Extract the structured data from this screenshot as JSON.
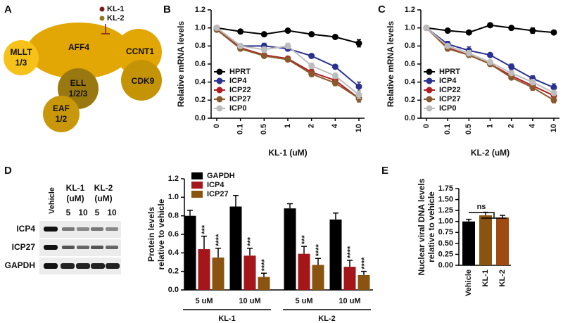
{
  "panel_labels": [
    "A",
    "B",
    "C",
    "D",
    "E"
  ],
  "diagram": {
    "nodes": [
      {
        "label": [
          "AFF4"
        ]
      },
      {
        "label": [
          "MLLT",
          "1/3"
        ]
      },
      {
        "label": [
          "CCNT1"
        ]
      },
      {
        "label": [
          "CDK9"
        ]
      },
      {
        "label": [
          "ELL",
          "1/2/3"
        ]
      },
      {
        "label": [
          "EAF",
          "1/2"
        ]
      }
    ],
    "legend": [
      "KL-1",
      "KL-2"
    ]
  },
  "blot": {
    "vehicle": "Vehicle",
    "treatments": [
      "KL-1",
      "KL-2"
    ],
    "unit": "(uM)",
    "doses": [
      "5",
      "10",
      "5",
      "10"
    ],
    "rows": [
      "ICP4",
      "ICP27",
      "GAPDH"
    ]
  },
  "chart_data": [
    {
      "type": "line",
      "x_label": "KL-1 (uM)",
      "y_label": "Relative mRNA levels",
      "legend": "lower left",
      "categories": [
        "0",
        "0.1",
        "0.5",
        "1",
        "2",
        "4",
        "10"
      ],
      "ylim": [
        0,
        1.2
      ],
      "yticks": [
        {
          "value": 0,
          "label": "0.0"
        },
        0.2,
        0.4,
        0.6,
        0.8,
        {
          "value": 1,
          "label": "1.0"
        },
        1.2
      ],
      "series": [
        {
          "name": "HPRT",
          "color": "#000000",
          "values": [
            1.0,
            0.96,
            0.93,
            0.97,
            0.93,
            0.9,
            0.83
          ],
          "errors": [
            0.01,
            0.01,
            0.01,
            0.01,
            0.01,
            0.02,
            0.04
          ]
        },
        {
          "name": "ICP4",
          "color": "#2b3190",
          "values": [
            1.0,
            0.8,
            0.8,
            0.77,
            0.69,
            0.57,
            0.35
          ],
          "errors": [
            0.01,
            0.02,
            0.03,
            0.02,
            0.02,
            0.02,
            0.05
          ]
        },
        {
          "name": "ICP22",
          "color": "#b01e23",
          "values": [
            1.0,
            0.78,
            0.7,
            0.66,
            0.51,
            0.42,
            0.22
          ],
          "errors": [
            0.01,
            0.02,
            0.02,
            0.02,
            0.03,
            0.03,
            0.04
          ]
        },
        {
          "name": "ICP27",
          "color": "#8a5a2e",
          "values": [
            0.98,
            0.77,
            0.69,
            0.65,
            0.49,
            0.39,
            0.22
          ],
          "errors": [
            0.01,
            0.02,
            0.02,
            0.02,
            0.03,
            0.03,
            0.04
          ]
        },
        {
          "name": "ICP0",
          "color": "#bdbdbd",
          "values": [
            1.0,
            0.8,
            0.76,
            0.8,
            0.58,
            0.47,
            0.26
          ],
          "errors": [
            0.01,
            0.02,
            0.03,
            0.03,
            0.03,
            0.03,
            0.04
          ]
        }
      ]
    },
    {
      "type": "line",
      "x_label": "KL-2 (uM)",
      "y_label": "Relative mRNA levels",
      "legend": "lower left",
      "categories": [
        "0",
        "0.1",
        "0.5",
        "1",
        "2",
        "4",
        "10"
      ],
      "ylim": [
        0,
        1.2
      ],
      "yticks": [
        {
          "value": 0,
          "label": "0.0"
        },
        0.2,
        0.4,
        0.6,
        0.8,
        {
          "value": 1,
          "label": "1.0"
        },
        1.2
      ],
      "series": [
        {
          "name": "HPRT",
          "color": "#000000",
          "values": [
            1.0,
            0.97,
            0.95,
            1.03,
            1.0,
            0.97,
            0.95
          ],
          "errors": [
            0.01,
            0.01,
            0.01,
            0.01,
            0.01,
            0.03,
            0.02
          ]
        },
        {
          "name": "ICP4",
          "color": "#2b3190",
          "values": [
            1.0,
            0.82,
            0.75,
            0.7,
            0.57,
            0.44,
            0.34
          ],
          "errors": [
            0.01,
            0.03,
            0.04,
            0.02,
            0.03,
            0.03,
            0.04
          ]
        },
        {
          "name": "ICP22",
          "color": "#b01e23",
          "values": [
            1.0,
            0.78,
            0.7,
            0.6,
            0.47,
            0.36,
            0.25
          ],
          "errors": [
            0.01,
            0.02,
            0.02,
            0.02,
            0.02,
            0.03,
            0.03
          ]
        },
        {
          "name": "ICP27",
          "color": "#8a5a2e",
          "values": [
            1.0,
            0.77,
            0.7,
            0.6,
            0.45,
            0.34,
            0.2
          ],
          "errors": [
            0.01,
            0.02,
            0.02,
            0.02,
            0.02,
            0.03,
            0.03
          ]
        },
        {
          "name": "ICP0",
          "color": "#bdbdbd",
          "values": [
            1.0,
            0.8,
            0.72,
            0.62,
            0.5,
            0.4,
            0.28
          ],
          "errors": [
            0.01,
            0.02,
            0.03,
            0.02,
            0.02,
            0.03,
            0.03
          ]
        }
      ]
    },
    {
      "type": "bar",
      "y_label": [
        "Protein levels",
        "relative to vehicle"
      ],
      "legend": "upper left",
      "categories": [
        "5 uM",
        "10 uM",
        "5 uM",
        "10 uM"
      ],
      "group_labels": [
        "KL-1",
        "KL-2"
      ],
      "ylim": [
        0,
        1.2
      ],
      "yticks": [
        {
          "value": 0,
          "label": "0.0"
        },
        0.2,
        0.4,
        0.6,
        0.8,
        {
          "value": 1,
          "label": "1.0"
        },
        1.2
      ],
      "series": [
        {
          "name": "GAPDH",
          "color": "#000000",
          "values": [
            0.8,
            0.9,
            0.88,
            0.76
          ],
          "errors": [
            0.06,
            0.12,
            0.05,
            0.07
          ]
        },
        {
          "name": "ICP4",
          "color": "#a4161a",
          "values": [
            0.44,
            0.37,
            0.39,
            0.25
          ],
          "errors": [
            0.14,
            0.08,
            0.08,
            0.07
          ],
          "significance": [
            "***",
            "***",
            "***",
            "****"
          ]
        },
        {
          "name": "ICP27",
          "color": "#8a5410",
          "values": [
            0.35,
            0.14,
            0.27,
            0.16
          ],
          "errors": [
            0.1,
            0.04,
            0.07,
            0.04
          ],
          "significance": [
            "****",
            "****",
            "****",
            "****"
          ]
        }
      ]
    },
    {
      "type": "bar",
      "y_label": [
        "Nuclear viral DNA levels",
        "relative to vehicle"
      ],
      "annotation": "ns",
      "categories": [
        "Vehicle",
        "KL-1",
        "KL-2"
      ],
      "values": [
        1.0,
        1.14,
        1.09
      ],
      "errors": [
        0.05,
        0.07,
        0.05
      ],
      "colors": [
        "#000000",
        "#8a5410",
        "#9e4a12"
      ],
      "ylim": [
        0,
        1.75
      ],
      "yticks": [
        {
          "value": 0,
          "label": "0.00"
        },
        0.25,
        {
          "value": 0.5,
          "label": "0.50"
        },
        0.75,
        {
          "value": 1,
          "label": "1.00"
        },
        1.25,
        {
          "value": 1.5,
          "label": "1.50"
        },
        1.75
      ]
    }
  ]
}
